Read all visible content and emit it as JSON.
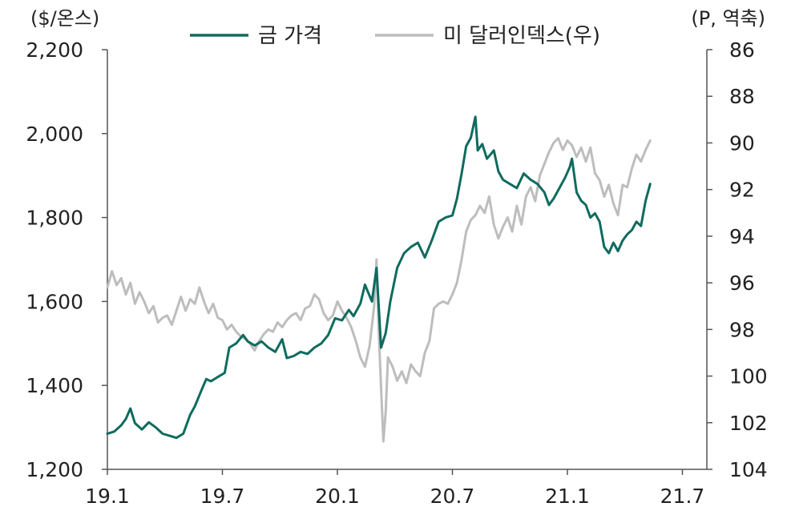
{
  "chart_data": {
    "type": "line",
    "left_unit": "($/온스)",
    "right_unit": "(P, 역축)",
    "x_ticks": [
      "19.1",
      "19.7",
      "20.1",
      "20.7",
      "21.1",
      "21.7"
    ],
    "x_range": [
      2019.0,
      2021.5
    ],
    "y_left_ticks": [
      "1,200",
      "1,400",
      "1,600",
      "1,800",
      "2,000",
      "2,200"
    ],
    "y_left_range": [
      1200,
      2200
    ],
    "y_right_ticks": [
      "86",
      "88",
      "90",
      "92",
      "94",
      "96",
      "98",
      "100",
      "102",
      "104"
    ],
    "y_right_range": [
      86,
      104
    ],
    "y_right_inverted": true,
    "grid": false,
    "legend_position": "top",
    "series": [
      {
        "name": "금 가격",
        "axis": "left",
        "color": "#0e6b5e",
        "points": [
          [
            2019.0,
            1285
          ],
          [
            2019.03,
            1290
          ],
          [
            2019.06,
            1305
          ],
          [
            2019.08,
            1320
          ],
          [
            2019.1,
            1345
          ],
          [
            2019.12,
            1310
          ],
          [
            2019.15,
            1295
          ],
          [
            2019.18,
            1312
          ],
          [
            2019.21,
            1300
          ],
          [
            2019.24,
            1285
          ],
          [
            2019.27,
            1280
          ],
          [
            2019.3,
            1275
          ],
          [
            2019.33,
            1285
          ],
          [
            2019.36,
            1330
          ],
          [
            2019.38,
            1350
          ],
          [
            2019.41,
            1390
          ],
          [
            2019.43,
            1415
          ],
          [
            2019.45,
            1410
          ],
          [
            2019.48,
            1420
          ],
          [
            2019.51,
            1430
          ],
          [
            2019.53,
            1490
          ],
          [
            2019.56,
            1500
          ],
          [
            2019.59,
            1520
          ],
          [
            2019.61,
            1505
          ],
          [
            2019.64,
            1495
          ],
          [
            2019.67,
            1505
          ],
          [
            2019.7,
            1490
          ],
          [
            2019.73,
            1480
          ],
          [
            2019.76,
            1510
          ],
          [
            2019.78,
            1465
          ],
          [
            2019.81,
            1470
          ],
          [
            2019.84,
            1480
          ],
          [
            2019.87,
            1475
          ],
          [
            2019.9,
            1490
          ],
          [
            2019.93,
            1500
          ],
          [
            2019.96,
            1520
          ],
          [
            2019.99,
            1560
          ],
          [
            2020.02,
            1555
          ],
          [
            2020.05,
            1580
          ],
          [
            2020.07,
            1565
          ],
          [
            2020.1,
            1595
          ],
          [
            2020.12,
            1640
          ],
          [
            2020.15,
            1600
          ],
          [
            2020.17,
            1680
          ],
          [
            2020.19,
            1490
          ],
          [
            2020.21,
            1525
          ],
          [
            2020.23,
            1600
          ],
          [
            2020.26,
            1680
          ],
          [
            2020.29,
            1715
          ],
          [
            2020.32,
            1730
          ],
          [
            2020.35,
            1740
          ],
          [
            2020.38,
            1705
          ],
          [
            2020.41,
            1745
          ],
          [
            2020.44,
            1790
          ],
          [
            2020.47,
            1800
          ],
          [
            2020.5,
            1805
          ],
          [
            2020.52,
            1845
          ],
          [
            2020.54,
            1905
          ],
          [
            2020.56,
            1970
          ],
          [
            2020.58,
            1990
          ],
          [
            2020.6,
            2040
          ],
          [
            2020.61,
            1960
          ],
          [
            2020.63,
            1975
          ],
          [
            2020.65,
            1940
          ],
          [
            2020.68,
            1960
          ],
          [
            2020.7,
            1910
          ],
          [
            2020.72,
            1890
          ],
          [
            2020.75,
            1880
          ],
          [
            2020.78,
            1870
          ],
          [
            2020.81,
            1905
          ],
          [
            2020.84,
            1890
          ],
          [
            2020.87,
            1880
          ],
          [
            2020.9,
            1860
          ],
          [
            2020.92,
            1830
          ],
          [
            2020.94,
            1845
          ],
          [
            2020.97,
            1875
          ],
          [
            2020.99,
            1895
          ],
          [
            2021.01,
            1920
          ],
          [
            2021.02,
            1940
          ],
          [
            2021.04,
            1860
          ],
          [
            2021.06,
            1840
          ],
          [
            2021.08,
            1830
          ],
          [
            2021.1,
            1800
          ],
          [
            2021.12,
            1810
          ],
          [
            2021.14,
            1790
          ],
          [
            2021.16,
            1730
          ],
          [
            2021.18,
            1715
          ],
          [
            2021.2,
            1740
          ],
          [
            2021.22,
            1720
          ],
          [
            2021.24,
            1745
          ],
          [
            2021.26,
            1760
          ],
          [
            2021.28,
            1770
          ],
          [
            2021.3,
            1790
          ],
          [
            2021.32,
            1780
          ],
          [
            2021.34,
            1840
          ],
          [
            2021.36,
            1880
          ]
        ]
      },
      {
        "name": "미 달러인덱스(우)",
        "axis": "right",
        "color": "#bdbdbd",
        "points": [
          [
            2019.0,
            96.2
          ],
          [
            2019.02,
            95.5
          ],
          [
            2019.04,
            96.1
          ],
          [
            2019.06,
            95.8
          ],
          [
            2019.08,
            96.5
          ],
          [
            2019.1,
            96.0
          ],
          [
            2019.12,
            96.9
          ],
          [
            2019.14,
            96.4
          ],
          [
            2019.16,
            96.8
          ],
          [
            2019.18,
            97.3
          ],
          [
            2019.2,
            97.0
          ],
          [
            2019.22,
            97.7
          ],
          [
            2019.24,
            97.5
          ],
          [
            2019.26,
            97.4
          ],
          [
            2019.28,
            97.8
          ],
          [
            2019.3,
            97.2
          ],
          [
            2019.32,
            96.6
          ],
          [
            2019.34,
            97.2
          ],
          [
            2019.36,
            96.7
          ],
          [
            2019.38,
            96.9
          ],
          [
            2019.4,
            96.2
          ],
          [
            2019.42,
            96.8
          ],
          [
            2019.44,
            97.3
          ],
          [
            2019.46,
            96.9
          ],
          [
            2019.48,
            97.5
          ],
          [
            2019.5,
            97.6
          ],
          [
            2019.52,
            98.0
          ],
          [
            2019.54,
            97.8
          ],
          [
            2019.56,
            98.1
          ],
          [
            2019.58,
            98.3
          ],
          [
            2019.6,
            98.4
          ],
          [
            2019.62,
            98.6
          ],
          [
            2019.64,
            98.9
          ],
          [
            2019.66,
            98.5
          ],
          [
            2019.68,
            98.2
          ],
          [
            2019.7,
            98.0
          ],
          [
            2019.72,
            98.1
          ],
          [
            2019.74,
            97.7
          ],
          [
            2019.76,
            97.9
          ],
          [
            2019.78,
            97.6
          ],
          [
            2019.8,
            97.4
          ],
          [
            2019.82,
            97.3
          ],
          [
            2019.84,
            97.6
          ],
          [
            2019.86,
            97.1
          ],
          [
            2019.88,
            97.0
          ],
          [
            2019.9,
            96.5
          ],
          [
            2019.92,
            96.7
          ],
          [
            2019.94,
            97.3
          ],
          [
            2019.96,
            97.6
          ],
          [
            2019.98,
            97.4
          ],
          [
            2020.0,
            96.8
          ],
          [
            2020.02,
            97.2
          ],
          [
            2020.04,
            97.5
          ],
          [
            2020.06,
            97.9
          ],
          [
            2020.08,
            98.5
          ],
          [
            2020.1,
            99.2
          ],
          [
            2020.12,
            99.6
          ],
          [
            2020.14,
            98.7
          ],
          [
            2020.16,
            97.0
          ],
          [
            2020.17,
            95.0
          ],
          [
            2020.18,
            98.2
          ],
          [
            2020.19,
            100.5
          ],
          [
            2020.2,
            102.8
          ],
          [
            2020.21,
            101.5
          ],
          [
            2020.22,
            99.2
          ],
          [
            2020.24,
            99.6
          ],
          [
            2020.26,
            100.2
          ],
          [
            2020.28,
            99.8
          ],
          [
            2020.3,
            100.3
          ],
          [
            2020.32,
            99.5
          ],
          [
            2020.34,
            99.8
          ],
          [
            2020.36,
            100.0
          ],
          [
            2020.38,
            99.0
          ],
          [
            2020.4,
            98.5
          ],
          [
            2020.42,
            97.1
          ],
          [
            2020.44,
            96.9
          ],
          [
            2020.46,
            96.8
          ],
          [
            2020.48,
            96.9
          ],
          [
            2020.5,
            96.5
          ],
          [
            2020.52,
            96.0
          ],
          [
            2020.54,
            95.0
          ],
          [
            2020.56,
            93.8
          ],
          [
            2020.58,
            93.3
          ],
          [
            2020.6,
            93.1
          ],
          [
            2020.62,
            92.7
          ],
          [
            2020.64,
            93.0
          ],
          [
            2020.66,
            92.3
          ],
          [
            2020.68,
            93.5
          ],
          [
            2020.7,
            94.1
          ],
          [
            2020.72,
            93.6
          ],
          [
            2020.74,
            93.2
          ],
          [
            2020.76,
            93.8
          ],
          [
            2020.78,
            92.7
          ],
          [
            2020.8,
            93.5
          ],
          [
            2020.82,
            92.3
          ],
          [
            2020.84,
            91.9
          ],
          [
            2020.86,
            92.5
          ],
          [
            2020.88,
            91.4
          ],
          [
            2020.9,
            90.9
          ],
          [
            2020.92,
            90.4
          ],
          [
            2020.94,
            90.0
          ],
          [
            2020.96,
            89.8
          ],
          [
            2020.98,
            90.3
          ],
          [
            2021.0,
            89.9
          ],
          [
            2021.02,
            90.1
          ],
          [
            2021.04,
            90.6
          ],
          [
            2021.06,
            90.2
          ],
          [
            2021.08,
            90.8
          ],
          [
            2021.1,
            90.2
          ],
          [
            2021.12,
            91.3
          ],
          [
            2021.14,
            91.6
          ],
          [
            2021.16,
            92.3
          ],
          [
            2021.18,
            91.8
          ],
          [
            2021.2,
            92.6
          ],
          [
            2021.22,
            93.1
          ],
          [
            2021.24,
            91.8
          ],
          [
            2021.26,
            91.9
          ],
          [
            2021.28,
            91.1
          ],
          [
            2021.3,
            90.5
          ],
          [
            2021.32,
            90.8
          ],
          [
            2021.34,
            90.3
          ],
          [
            2021.36,
            89.9
          ]
        ]
      }
    ]
  }
}
